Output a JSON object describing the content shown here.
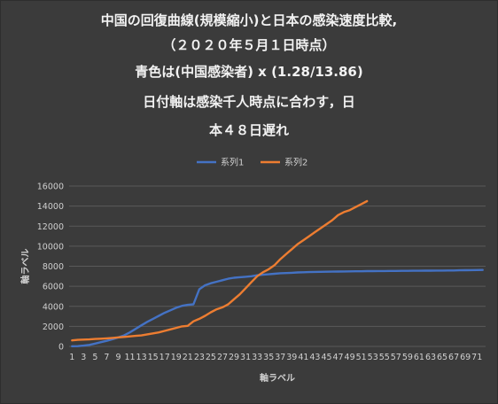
{
  "title_lines": [
    "中国の回復曲線(規模縮小)と日本の感染速度比較,",
    "（２０２０年５月１日時点）",
    "青色は(中国感染者) x (1.28/13.86)",
    "日付軸は感染千人時点に合わす，日",
    "本４８日遅れ"
  ],
  "chart_data": {
    "type": "line",
    "title": "中国の回復曲線(規模縮小)と日本の感染速度比較, （２０２０年５月１日時点） 青色は(中国感染者) x (1.28/13.86) 日付軸は感染千人時点に合わす，日本４８日遅れ",
    "xlabel": "軸ラベル",
    "ylabel": "軸ラベル",
    "x_tick_labels": [
      "1",
      "3",
      "5",
      "7",
      "9",
      "11",
      "13",
      "15",
      "17",
      "19",
      "21",
      "23",
      "25",
      "27",
      "29",
      "31",
      "33",
      "35",
      "37",
      "39",
      "41",
      "43",
      "45",
      "47",
      "49",
      "51",
      "53",
      "55",
      "57",
      "59",
      "61",
      "63",
      "65",
      "67",
      "69",
      "71"
    ],
    "x_range": [
      1,
      72
    ],
    "ylim": [
      0,
      16000
    ],
    "y_ticks": [
      "0",
      "2000",
      "4000",
      "6000",
      "8000",
      "10000",
      "12000",
      "14000",
      "16000"
    ],
    "grid": true,
    "legend_position": "top",
    "series": [
      {
        "name": "系列1",
        "color": "#4472c4",
        "x": [
          1,
          2,
          3,
          4,
          5,
          6,
          7,
          8,
          9,
          10,
          11,
          12,
          13,
          14,
          15,
          16,
          17,
          18,
          19,
          20,
          21,
          22,
          23,
          24,
          25,
          26,
          27,
          28,
          29,
          30,
          31,
          32,
          33,
          34,
          35,
          36,
          37,
          38,
          39,
          40,
          41,
          42,
          43,
          44,
          45,
          46,
          47,
          48,
          49,
          50,
          51,
          52,
          53,
          54,
          55,
          56,
          57,
          58,
          59,
          60,
          61,
          62,
          63,
          64,
          65,
          66,
          67,
          68,
          69,
          70,
          71,
          72
        ],
        "values": [
          20,
          30,
          80,
          150,
          280,
          420,
          560,
          720,
          900,
          1100,
          1400,
          1750,
          2100,
          2450,
          2750,
          3050,
          3350,
          3600,
          3850,
          4050,
          4150,
          4200,
          5700,
          6100,
          6300,
          6450,
          6600,
          6750,
          6850,
          6900,
          6950,
          7000,
          7100,
          7150,
          7200,
          7250,
          7300,
          7320,
          7350,
          7380,
          7400,
          7420,
          7430,
          7440,
          7450,
          7460,
          7470,
          7480,
          7490,
          7500,
          7500,
          7510,
          7510,
          7520,
          7520,
          7530,
          7530,
          7540,
          7540,
          7550,
          7550,
          7560,
          7560,
          7570,
          7570,
          7580,
          7580,
          7590,
          7600,
          7610,
          7620,
          7630
        ]
      },
      {
        "name": "系列2",
        "color": "#ed7d31",
        "x": [
          1,
          2,
          3,
          4,
          5,
          6,
          7,
          8,
          9,
          10,
          11,
          12,
          13,
          14,
          15,
          16,
          17,
          18,
          19,
          20,
          21,
          22,
          23,
          24,
          25,
          26,
          27,
          28,
          29,
          30,
          31,
          32,
          33,
          34,
          35,
          36,
          37,
          38,
          39,
          40,
          41,
          42,
          43,
          44,
          45,
          46,
          47,
          48,
          49,
          50,
          51,
          52
        ],
        "values": [
          600,
          650,
          680,
          700,
          740,
          770,
          800,
          850,
          900,
          950,
          1000,
          1050,
          1100,
          1200,
          1300,
          1400,
          1550,
          1700,
          1850,
          2000,
          2050,
          2500,
          2750,
          3050,
          3400,
          3700,
          3900,
          4200,
          4700,
          5200,
          5800,
          6400,
          7000,
          7400,
          7700,
          8100,
          8700,
          9200,
          9700,
          10200,
          10600,
          11000,
          11400,
          11800,
          12200,
          12600,
          13100,
          13400,
          13600,
          13900,
          14200,
          14500
        ]
      }
    ]
  }
}
